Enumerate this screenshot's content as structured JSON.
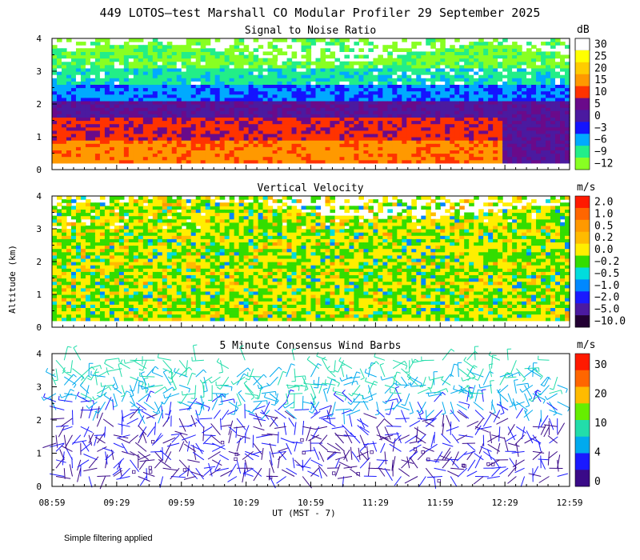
{
  "chart_data": {
    "title": "449 LOTOS—test Marshall CO Modular Profiler 29 September 2025",
    "xlabel": "UT  (MST - 7)",
    "ylabel": "Altitude (km)",
    "x_ticks": [
      "08:59",
      "09:29",
      "09:59",
      "10:29",
      "10:59",
      "11:29",
      "11:59",
      "12:29",
      "12:59"
    ],
    "y_ticks": [
      "0",
      "1",
      "2",
      "3",
      "4"
    ],
    "ylim": [
      0,
      4
    ],
    "footnote": "Simple filtering applied",
    "panels": [
      {
        "type": "heatmap",
        "title": "Signal to Noise Ratio",
        "unit": "dB",
        "colorbar_labels": [
          "30",
          "25",
          "20",
          "15",
          "10",
          "5",
          "0",
          "−3",
          "−6",
          "−9",
          "−12"
        ],
        "colors": [
          "#ffffff",
          "#ffff00",
          "#ffcc00",
          "#ff9900",
          "#ff3300",
          "#6a0a8a",
          "#4b1aa0",
          "#1414ff",
          "#00aaff",
          "#22ee88",
          "#88ff22"
        ],
        "profile_by_height": [
          {
            "height_km": 0.5,
            "value_db": 12
          },
          {
            "height_km": 1.0,
            "value_db": 10
          },
          {
            "height_km": 1.5,
            "value_db": 5
          },
          {
            "height_km": 2.0,
            "value_db": 0
          },
          {
            "height_km": 2.5,
            "value_db": -6
          },
          {
            "height_km": 3.0,
            "value_db": -9
          },
          {
            "height_km": 3.5,
            "value_db": -12
          }
        ]
      },
      {
        "type": "heatmap",
        "title": "Vertical Velocity",
        "unit": "m/s",
        "colorbar_labels": [
          "2.0",
          "1.0",
          "0.5",
          "0.2",
          "0.0",
          "−0.2",
          "−0.5",
          "−1.0",
          "−2.0",
          "−5.0",
          "−10.0"
        ],
        "colors": [
          "#ff1a00",
          "#ff6600",
          "#ff9900",
          "#ffbb00",
          "#ffee00",
          "#33dd00",
          "#00dddd",
          "#0088ff",
          "#1a1aff",
          "#4b1aa0",
          "#220033"
        ]
      },
      {
        "type": "wind_barbs",
        "title": "5 Minute Consensus Wind Barbs",
        "unit": "m/s",
        "colorbar_labels": [
          "30",
          "20",
          "10",
          "4",
          "0"
        ],
        "colors": [
          "#ff1a00",
          "#ff6600",
          "#ffbb00",
          "#66ee00",
          "#22ddaa",
          "#00aaee",
          "#1a1aff",
          "#3a0a88"
        ],
        "speed_by_height": [
          {
            "height_km": 0.5,
            "speed_ms": 2
          },
          {
            "height_km": 1.5,
            "speed_ms": 3
          },
          {
            "height_km": 2.5,
            "speed_ms": 6
          },
          {
            "height_km": 3.2,
            "speed_ms": 9
          },
          {
            "height_km": 3.8,
            "speed_ms": 11
          }
        ]
      }
    ]
  }
}
